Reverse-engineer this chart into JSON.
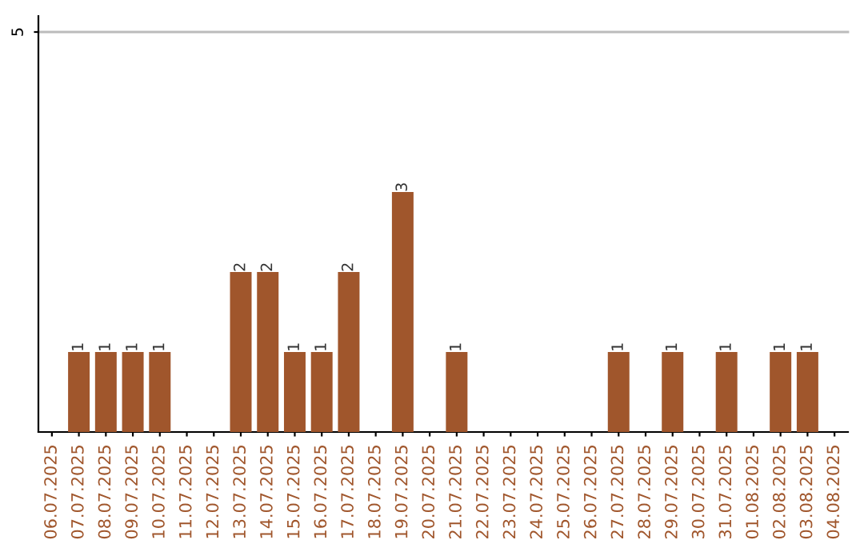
{
  "chart_data": {
    "type": "bar",
    "categories": [
      "06.07.2025",
      "07.07.2025",
      "08.07.2025",
      "09.07.2025",
      "10.07.2025",
      "11.07.2025",
      "12.07.2025",
      "13.07.2025",
      "14.07.2025",
      "15.07.2025",
      "16.07.2025",
      "17.07.2025",
      "18.07.2025",
      "19.07.2025",
      "20.07.2025",
      "21.07.2025",
      "22.07.2025",
      "23.07.2025",
      "24.07.2025",
      "25.07.2025",
      "26.07.2025",
      "27.07.2025",
      "28.07.2025",
      "29.07.2025",
      "30.07.2025",
      "31.07.2025",
      "01.08.2025",
      "02.08.2025",
      "03.08.2025",
      "04.08.2025"
    ],
    "values": [
      0,
      1,
      1,
      1,
      1,
      0,
      0,
      2,
      2,
      1,
      1,
      2,
      0,
      3,
      0,
      1,
      0,
      0,
      0,
      0,
      0,
      1,
      0,
      1,
      0,
      1,
      0,
      1,
      1,
      0
    ],
    "value_labels": [
      null,
      "1",
      "1",
      "1",
      "1",
      null,
      null,
      "2",
      "2",
      "1",
      "1",
      "2",
      null,
      "3",
      null,
      "1",
      null,
      null,
      null,
      null,
      null,
      "1",
      null,
      "1",
      null,
      "1",
      null,
      "1",
      "1",
      null
    ],
    "color": "#a0562c",
    "ylim": [
      0,
      5.2
    ],
    "yticks": [
      5
    ],
    "grid": "y"
  }
}
